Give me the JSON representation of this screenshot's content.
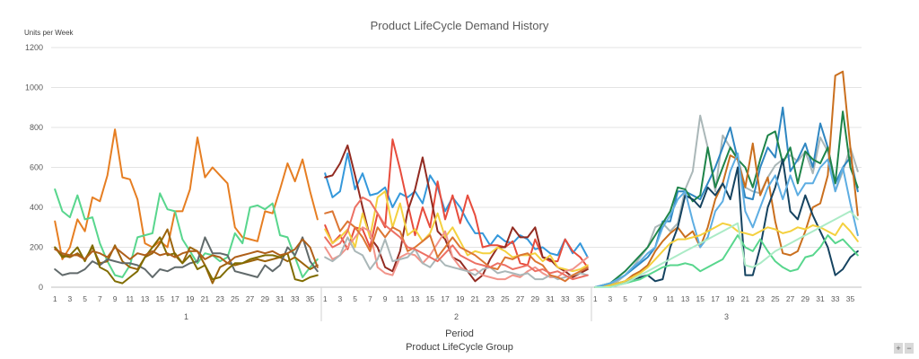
{
  "zoom": {
    "plus": "+",
    "minus": "−"
  },
  "chart_data": {
    "type": "line",
    "title": "Product LifeCycle Demand History",
    "ylabel": "Units per Week",
    "xlabel": "Period",
    "xlabel_group": "Product LifeCycle Group",
    "ylim": [
      0,
      1200
    ],
    "yticks": [
      0,
      200,
      400,
      600,
      800,
      1000,
      1200
    ],
    "grid": true,
    "legend": "none",
    "x_tick_labels": [
      "1",
      "3",
      "5",
      "7",
      "9",
      "11",
      "13",
      "15",
      "17",
      "19",
      "21",
      "23",
      "25",
      "27",
      "29",
      "31",
      "33",
      "35"
    ],
    "groups": [
      {
        "label": "1",
        "series": [
          {
            "color": "#e67e22",
            "values": [
              330,
              140,
              200,
              340,
              280,
              450,
              430,
              560,
              790,
              550,
              540,
              440,
              220,
              200,
              230,
              200,
              380,
              380,
              490,
              750,
              550,
              600,
              560,
              520,
              300,
              250,
              240,
              230,
              380,
              370,
              490,
              620,
              530,
              640,
              480,
              340
            ]
          },
          {
            "color": "#58d68d",
            "values": [
              490,
              380,
              350,
              460,
              340,
              350,
              220,
              130,
              60,
              50,
              110,
              250,
              260,
              270,
              470,
              390,
              380,
              240,
              180,
              120,
              170,
              160,
              130,
              150,
              270,
              220,
              400,
              410,
              390,
              420,
              260,
              250,
              150,
              50,
              100,
              140
            ]
          },
          {
            "color": "#9c640c",
            "values": [
              200,
              160,
              150,
              170,
              140,
              200,
              120,
              130,
              210,
              130,
              100,
              90,
              150,
              170,
              220,
              290,
              160,
              120,
              200,
              180,
              110,
              20,
              100,
              120,
              110,
              120,
              130,
              140,
              130,
              140,
              150,
              130,
              150,
              120,
              90,
              110
            ]
          },
          {
            "color": "#616a6b",
            "values": [
              90,
              60,
              70,
              70,
              90,
              130,
              110,
              140,
              130,
              120,
              120,
              110,
              90,
              50,
              90,
              80,
              100,
              100,
              120,
              130,
              250,
              170,
              170,
              160,
              80,
              70,
              60,
              50,
              110,
              80,
              110,
              200,
              160,
              250,
              130,
              80
            ]
          },
          {
            "color": "#806c00",
            "values": [
              200,
              150,
              160,
              200,
              130,
              210,
              100,
              80,
              30,
              20,
              50,
              80,
              150,
              200,
              250,
              160,
              170,
              120,
              160,
              90,
              110,
              40,
              50,
              90,
              120,
              120,
              140,
              150,
              160,
              160,
              150,
              170,
              40,
              30,
              50,
              60
            ]
          },
          {
            "color": "#af601a",
            "values": [
              190,
              170,
              160,
              160,
              140,
              180,
              170,
              150,
              200,
              170,
              140,
              170,
              160,
              180,
              160,
              170,
              150,
              170,
              180,
              180,
              140,
              160,
              150,
              120,
              150,
              160,
              170,
              180,
              170,
              180,
              160,
              170,
              190,
              240,
              200,
              100
            ]
          }
        ]
      },
      {
        "label": "2",
        "series": [
          {
            "color": "#3498db",
            "values": [
              570,
              450,
              480,
              670,
              490,
              570,
              460,
              470,
              500,
              400,
              470,
              450,
              480,
              420,
              560,
              500,
              380,
              450,
              400,
              330,
              270,
              270,
              210,
              260,
              230,
              220,
              260,
              240,
              190,
              200,
              170,
              160,
              240,
              170,
              220,
              150
            ]
          },
          {
            "color": "#e74c3c",
            "values": [
              310,
              220,
              260,
              190,
              300,
              290,
              200,
              370,
              300,
              740,
              590,
              420,
              260,
              400,
              300,
              530,
              340,
              460,
              320,
              460,
              360,
              200,
              210,
              210,
              200,
              230,
              120,
              110,
              240,
              150,
              130,
              130,
              240,
              180,
              150,
              100
            ]
          },
          {
            "color": "#922b21",
            "values": [
              550,
              560,
              620,
              710,
              560,
              400,
              250,
              200,
              100,
              80,
              180,
              380,
              490,
              650,
              470,
              280,
              240,
              150,
              130,
              80,
              30,
              60,
              140,
              200,
              200,
              300,
              250,
              250,
              300,
              150,
              140,
              100,
              80,
              50,
              70,
              90
            ]
          },
          {
            "color": "#f4d03f",
            "values": [
              290,
              220,
              250,
              290,
              200,
              370,
              250,
              450,
              480,
              300,
              420,
              260,
              290,
              230,
              270,
              370,
              250,
              300,
              230,
              160,
              180,
              170,
              170,
              200,
              180,
              150,
              160,
              160,
              170,
              130,
              160,
              100,
              90,
              80,
              90,
              110
            ]
          },
          {
            "color": "#f1948a",
            "values": [
              200,
              140,
              160,
              200,
              250,
              300,
              280,
              100,
              70,
              60,
              150,
              170,
              160,
              120,
              160,
              220,
              280,
              150,
              100,
              80,
              90,
              60,
              50,
              40,
              40,
              60,
              50,
              80,
              100,
              70,
              50,
              50,
              80,
              90,
              120,
              150
            ]
          },
          {
            "color": "#aab7b8",
            "values": [
              150,
              130,
              160,
              250,
              180,
              160,
              90,
              140,
              240,
              130,
              140,
              150,
              190,
              120,
              100,
              150,
              110,
              100,
              90,
              80,
              60,
              90,
              100,
              70,
              80,
              70,
              60,
              70,
              40,
              40,
              60,
              40,
              50,
              60,
              70,
              60
            ]
          },
          {
            "color": "#dc7633",
            "values": [
              370,
              380,
              280,
              330,
              300,
              250,
              180,
              300,
              250,
              300,
              280,
              180,
              200,
              230,
              260,
              150,
              200,
              250,
              200,
              180,
              160,
              130,
              100,
              90,
              150,
              140,
              160,
              170,
              130,
              110,
              60,
              50,
              30,
              60,
              80,
              100
            ]
          },
          {
            "color": "#ec7063",
            "values": [
              250,
              200,
              220,
              280,
              400,
              450,
              430,
              370,
              310,
              280,
              250,
              200,
              190,
              170,
              150,
              130,
              170,
              210,
              160,
              140,
              120,
              110,
              100,
              120,
              110,
              90,
              100,
              110,
              80,
              90,
              70,
              80,
              60,
              40,
              50,
              60
            ]
          }
        ]
      },
      {
        "label": "3",
        "series": [
          {
            "color": "#aab7b8",
            "values": [
              0,
              0,
              10,
              30,
              60,
              100,
              150,
              200,
              300,
              320,
              280,
              320,
              490,
              580,
              860,
              700,
              480,
              760,
              700,
              650,
              500,
              480,
              470,
              550,
              610,
              640,
              660,
              630,
              680,
              570,
              750,
              680,
              480,
              580,
              700,
              580
            ]
          },
          {
            "color": "#2e86c1",
            "values": [
              0,
              10,
              20,
              40,
              60,
              90,
              120,
              150,
              200,
              330,
              330,
              480,
              480,
              460,
              440,
              520,
              600,
              700,
              800,
              640,
              450,
              440,
              600,
              700,
              650,
              900,
              580,
              640,
              720,
              600,
              820,
              700,
              520,
              600,
              650,
              480
            ]
          },
          {
            "color": "#1e8449",
            "values": [
              0,
              10,
              20,
              50,
              80,
              120,
              160,
              200,
              260,
              320,
              380,
              500,
              490,
              430,
              460,
              700,
              500,
              600,
              700,
              640,
              600,
              500,
              640,
              760,
              780,
              620,
              700,
              520,
              680,
              640,
              620,
              700,
              520,
              880,
              600,
              500
            ]
          },
          {
            "color": "#ca6f1e",
            "values": [
              0,
              0,
              10,
              20,
              30,
              60,
              80,
              110,
              180,
              230,
              270,
              300,
              250,
              280,
              200,
              300,
              440,
              520,
              660,
              640,
              500,
              720,
              460,
              550,
              330,
              170,
              160,
              180,
              280,
              400,
              420,
              560,
              1060,
              1080,
              700,
              360
            ]
          },
          {
            "color": "#154360",
            "values": [
              0,
              0,
              10,
              20,
              30,
              40,
              50,
              60,
              30,
              40,
              200,
              300,
              460,
              440,
              400,
              500,
              460,
              520,
              440,
              600,
              60,
              60,
              200,
              400,
              500,
              640,
              380,
              340,
              460,
              360,
              280,
              200,
              60,
              90,
              150,
              180
            ]
          },
          {
            "color": "#5dade2",
            "values": [
              0,
              10,
              20,
              40,
              60,
              100,
              130,
              170,
              200,
              300,
              360,
              440,
              480,
              330,
              200,
              250,
              380,
              430,
              580,
              670,
              380,
              300,
              400,
              500,
              560,
              440,
              560,
              460,
              520,
              520,
              600,
              640,
              480,
              600,
              420,
              260
            ]
          },
          {
            "color": "#f4d03f",
            "values": [
              0,
              0,
              10,
              20,
              30,
              50,
              70,
              100,
              140,
              180,
              220,
              240,
              240,
              250,
              260,
              280,
              300,
              320,
              310,
              280,
              270,
              260,
              280,
              300,
              290,
              270,
              280,
              300,
              290,
              310,
              300,
              280,
              260,
              320,
              280,
              230
            ]
          },
          {
            "color": "#58d68d",
            "values": [
              0,
              0,
              0,
              10,
              20,
              30,
              40,
              60,
              80,
              100,
              110,
              110,
              120,
              110,
              80,
              100,
              120,
              140,
              200,
              260,
              200,
              180,
              240,
              180,
              130,
              100,
              80,
              90,
              150,
              160,
              200,
              260,
              220,
              240,
              200,
              160
            ]
          },
          {
            "color": "#abebc6",
            "values": [
              0,
              0,
              0,
              10,
              20,
              40,
              60,
              80,
              100,
              120,
              140,
              160,
              180,
              200,
              220,
              240,
              260,
              280,
              300,
              320,
              110,
              100,
              120,
              150,
              180,
              200,
              220,
              240,
              260,
              280,
              300,
              320,
              340,
              360,
              380,
              340
            ]
          }
        ]
      }
    ]
  }
}
